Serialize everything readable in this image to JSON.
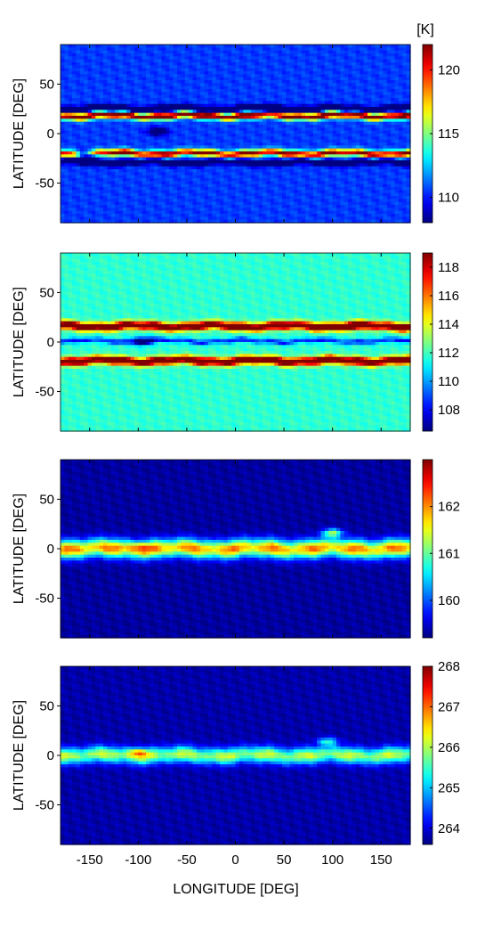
{
  "figure": {
    "unit_label": "[K]",
    "xlabel": "LONGITUDE [DEG]",
    "ylabel": "LATITUDE [DEG]",
    "x_ticks": [
      -150,
      -100,
      -50,
      0,
      50,
      100,
      150
    ],
    "y_ticks": [
      50,
      0,
      -50
    ]
  },
  "chart_data": [
    {
      "type": "heatmap",
      "title": "",
      "xlabel": "",
      "ylabel": "LATITUDE [DEG]",
      "xlim": [
        -180,
        180
      ],
      "ylim": [
        -90,
        90
      ],
      "color_range": [
        108,
        122
      ],
      "colorbar_ticks": [
        110,
        115,
        120
      ],
      "unit": "[K]",
      "bands": [
        {
          "lat": 18,
          "width": 3.5,
          "amp": 1.0,
          "kind": "warm",
          "x_from": -180,
          "x_to": 180
        },
        {
          "lat": -20,
          "width": 3.5,
          "amp": 0.9,
          "kind": "warm",
          "x_from": -180,
          "x_to": 180
        },
        {
          "lat": 25,
          "width": 3,
          "amp": -0.55,
          "kind": "cold",
          "x_from": -180,
          "x_to": 180
        },
        {
          "lat": -29,
          "width": 3,
          "amp": -0.4,
          "kind": "cold",
          "x_from": -180,
          "x_to": 180
        }
      ],
      "features": [
        {
          "lon": -155,
          "lat": -22,
          "amp": -0.9
        },
        {
          "lon": 40,
          "lat": 24,
          "amp": -0.7
        },
        {
          "lon": -80,
          "lat": 2,
          "amp": -0.3
        }
      ],
      "background": 0.18
    },
    {
      "type": "heatmap",
      "title": "",
      "xlabel": "",
      "ylabel": "LATITUDE [DEG]",
      "xlim": [
        -180,
        180
      ],
      "ylim": [
        -90,
        90
      ],
      "color_range": [
        106.5,
        119
      ],
      "colorbar_ticks": [
        108,
        110,
        112,
        114,
        116,
        118
      ],
      "unit": "",
      "bands": [
        {
          "lat": 16,
          "width": 4,
          "amp": 0.85,
          "kind": "warm",
          "x_from": -180,
          "x_to": 180
        },
        {
          "lat": -19,
          "width": 4,
          "amp": 0.85,
          "kind": "warm",
          "x_from": -180,
          "x_to": 180
        },
        {
          "lat": 1,
          "width": 2.5,
          "amp": -0.3,
          "kind": "cold",
          "x_from": -180,
          "x_to": 180
        }
      ],
      "features": [
        {
          "lon": -95,
          "lat": 1,
          "amp": -0.45
        },
        {
          "lon": 120,
          "lat": 16,
          "amp": 0.25
        }
      ],
      "background": 0.42
    },
    {
      "type": "heatmap",
      "title": "",
      "xlabel": "",
      "ylabel": "LATITUDE [DEG]",
      "xlim": [
        -180,
        180
      ],
      "ylim": [
        -90,
        90
      ],
      "color_range": [
        159.2,
        163
      ],
      "colorbar_ticks": [
        160,
        161,
        162
      ],
      "unit": "",
      "bands": [
        {
          "lat": 0,
          "width": 9,
          "amp": 0.75,
          "kind": "warm",
          "x_from": -180,
          "x_to": 180
        }
      ],
      "features": [
        {
          "lon": -100,
          "lat": 2,
          "amp": 0.2
        },
        {
          "lon": 100,
          "lat": 16,
          "amp": 0.5
        }
      ],
      "background": 0.03
    },
    {
      "type": "heatmap",
      "title": "",
      "xlabel": "LONGITUDE [DEG]",
      "ylabel": "LATITUDE [DEG]",
      "xlim": [
        -180,
        180
      ],
      "ylim": [
        -90,
        90
      ],
      "color_range": [
        263.6,
        268
      ],
      "colorbar_ticks": [
        264,
        265,
        266,
        267,
        268
      ],
      "unit": "",
      "bands": [
        {
          "lat": 0,
          "width": 8,
          "amp": 0.55,
          "kind": "warm",
          "x_from": -180,
          "x_to": 180
        }
      ],
      "features": [
        {
          "lon": -100,
          "lat": 3,
          "amp": 0.35
        },
        {
          "lon": 95,
          "lat": 14,
          "amp": 0.35
        }
      ],
      "background": 0.04
    }
  ]
}
